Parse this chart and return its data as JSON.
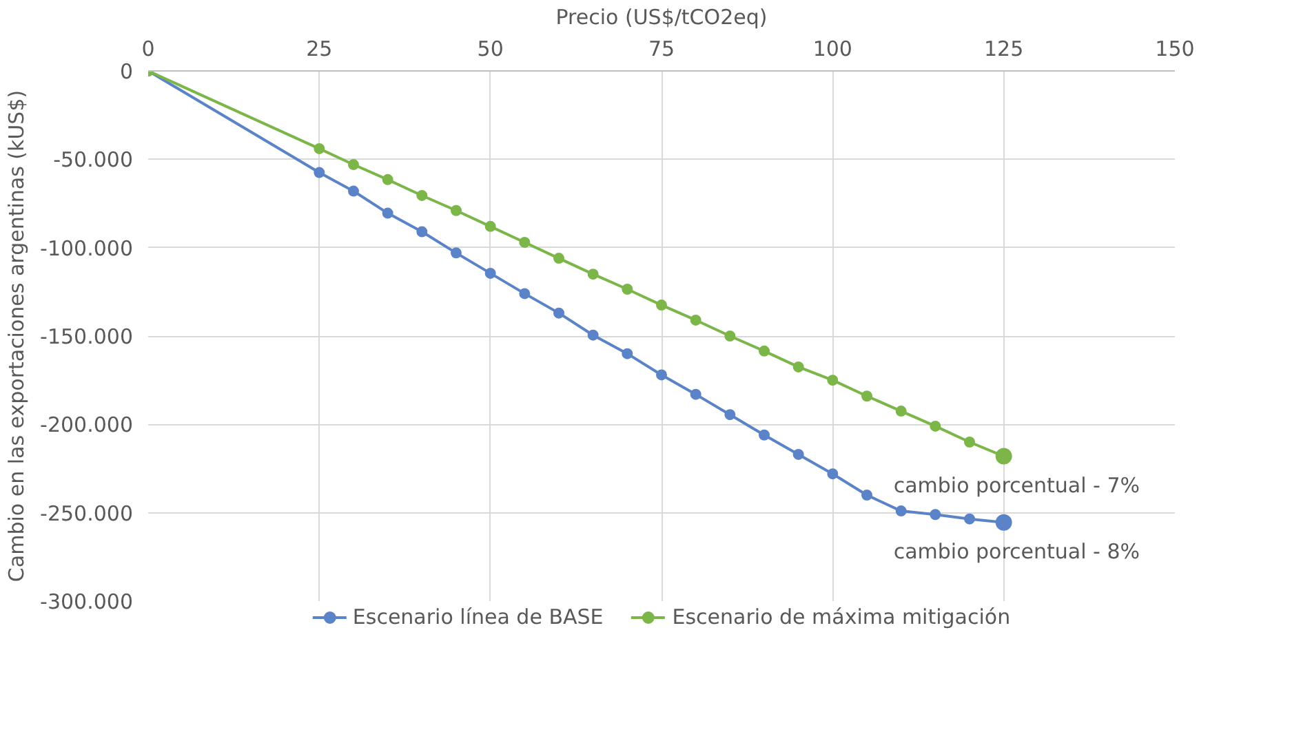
{
  "chart_data": {
    "type": "line",
    "xlabel": "Precio (US$/tCO2eq)",
    "ylabel": "Cambio en las exportaciones argentinas (kUS$)",
    "x": [
      0,
      25,
      30,
      35,
      40,
      45,
      50,
      55,
      60,
      65,
      70,
      75,
      80,
      85,
      90,
      95,
      100,
      105,
      110,
      115,
      120,
      125
    ],
    "series": [
      {
        "name": "Escenario línea de BASE",
        "color": "#5b83c8",
        "values": [
          0,
          -57500,
          -68000,
          -80500,
          -91000,
          -103000,
          -114500,
          -126000,
          -137000,
          -149500,
          -160000,
          -172000,
          -183000,
          -194500,
          -206000,
          -217000,
          -228000,
          -240000,
          -249000,
          -251000,
          -253500,
          -255500
        ]
      },
      {
        "name": "Escenario de máxima mitigación",
        "color": "#7cb649",
        "values": [
          0,
          -44000,
          -53000,
          -61500,
          -70500,
          -79000,
          -88000,
          -97000,
          -106000,
          -115000,
          -123500,
          -132500,
          -141000,
          -150000,
          -158500,
          -167500,
          -175000,
          -184000,
          -192500,
          -201000,
          -210000,
          -218000
        ]
      }
    ],
    "xlim": [
      0,
      150
    ],
    "xticks": [
      0,
      25,
      50,
      75,
      100,
      125,
      150
    ],
    "ylim": [
      -300000,
      0
    ],
    "yticks": [
      {
        "value": 0,
        "label": "0"
      },
      {
        "value": -50000,
        "label": "-50.000"
      },
      {
        "value": -100000,
        "label": "-100.000"
      },
      {
        "value": -150000,
        "label": "-150.000"
      },
      {
        "value": -200000,
        "label": "-200.000"
      },
      {
        "value": -250000,
        "label": "-250.000"
      },
      {
        "value": -300000,
        "label": "-300.000"
      }
    ],
    "annotations": [
      {
        "text": "cambio porcentual - 7%",
        "x": 125,
        "y": -218000
      },
      {
        "text": "cambio porcentual  - 8%",
        "x": 125,
        "y": -255500
      }
    ],
    "grid": true,
    "legend": "bottom",
    "marker": "circle",
    "line_style": "solid"
  }
}
